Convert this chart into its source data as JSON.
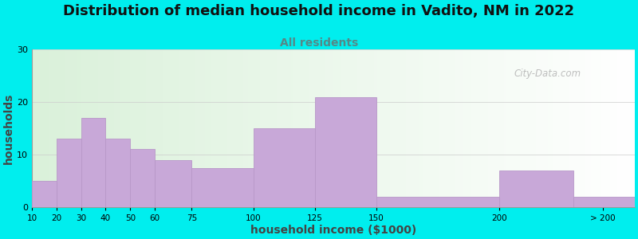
{
  "title": "Distribution of median household income in Vadito, NM in 2022",
  "subtitle": "All residents",
  "xlabel": "household income ($1000)",
  "ylabel": "households",
  "bar_heights": [
    5,
    13,
    17,
    13,
    11,
    9,
    7.5,
    15,
    21,
    2,
    7,
    2
  ],
  "bar_color": "#C8A8D8",
  "bar_edgecolor": "#B898C8",
  "ylim": [
    0,
    30
  ],
  "yticks": [
    0,
    10,
    20,
    30
  ],
  "bg_outer": "#00EEEE",
  "title_fontsize": 13,
  "subtitle_fontsize": 10,
  "subtitle_color": "#558888",
  "axis_label_fontsize": 10,
  "watermark": "City-Data.com"
}
